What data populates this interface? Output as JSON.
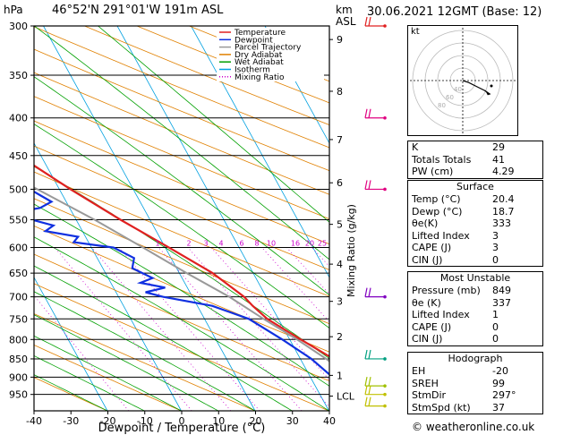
{
  "header": {
    "pressure_unit": "hPa",
    "location": "46°52'N  291°01'W  191m  ASL",
    "height_unit": "km",
    "height_unit2": "ASL",
    "valid_time": "30.06.2021  12GMT  (Base: 12)"
  },
  "chart_data": {
    "type": "skew-t log-p sounding",
    "xlabel": "Dewpoint / Temperature (°C)",
    "ylabel": "hPa",
    "mixing_ratio_label": "Mixing Ratio (g/kg)",
    "x_ticks": [
      -40,
      -30,
      -20,
      -10,
      0,
      10,
      20,
      30,
      40
    ],
    "pressure_levels": [
      300,
      350,
      400,
      450,
      500,
      550,
      600,
      650,
      700,
      750,
      800,
      850,
      900,
      950
    ],
    "height_ticks": [
      {
        "label": "9",
        "p": 313
      },
      {
        "label": "8",
        "p": 368
      },
      {
        "label": "7",
        "p": 428
      },
      {
        "label": "6",
        "p": 490
      },
      {
        "label": "5",
        "p": 558
      },
      {
        "label": "4",
        "p": 632
      },
      {
        "label": "3",
        "p": 710
      },
      {
        "label": "2",
        "p": 793
      },
      {
        "label": "1",
        "p": 895
      },
      {
        "label": "LCL",
        "p": 955
      }
    ],
    "mixing_ratio_values": [
      "1",
      "2",
      "3",
      "4",
      "6",
      "8",
      "10",
      "16",
      "20",
      "25"
    ],
    "legend": [
      {
        "name": "Temperature",
        "color": "#e02020"
      },
      {
        "name": "Dewpoint",
        "color": "#1030e0"
      },
      {
        "name": "Parcel Trajectory",
        "color": "#999999"
      },
      {
        "name": "Dry Adiabat",
        "color": "#e08000"
      },
      {
        "name": "Wet Adiabat",
        "color": "#00a000"
      },
      {
        "name": "Isotherm",
        "color": "#00a0e0"
      },
      {
        "name": "Mixing Ratio",
        "color": "#cc00cc"
      }
    ],
    "temperature": [
      [
        990,
        20.4
      ],
      [
        950,
        18.5
      ],
      [
        900,
        16.5
      ],
      [
        850,
        14.5
      ],
      [
        800,
        11.5
      ],
      [
        750,
        8.5
      ],
      [
        720,
        7.5
      ],
      [
        700,
        7.0
      ],
      [
        650,
        4.5
      ],
      [
        600,
        0.5
      ],
      [
        550,
        -4.0
      ],
      [
        500,
        -8.5
      ],
      [
        450,
        -13.0
      ],
      [
        400,
        -20.0
      ],
      [
        350,
        -28.0
      ],
      [
        320,
        -33.0
      ],
      [
        300,
        -36.0
      ]
    ],
    "dewpoint": [
      [
        990,
        18.7
      ],
      [
        950,
        16.0
      ],
      [
        900,
        13.0
      ],
      [
        850,
        11.5
      ],
      [
        800,
        9.0
      ],
      [
        750,
        6.0
      ],
      [
        720,
        2.0
      ],
      [
        700,
        -4.0
      ],
      [
        690,
        -6.0
      ],
      [
        680,
        -3.0
      ],
      [
        670,
        -6.0
      ],
      [
        660,
        -4.0
      ],
      [
        640,
        -6.0
      ],
      [
        620,
        -5.0
      ],
      [
        600,
        -7.0
      ],
      [
        590,
        -12.0
      ],
      [
        580,
        -11.0
      ],
      [
        570,
        -15.0
      ],
      [
        560,
        -13.5
      ],
      [
        550,
        -16.0
      ],
      [
        540,
        -19.0
      ],
      [
        530,
        -14.0
      ],
      [
        520,
        -12.0
      ],
      [
        510,
        -13.0
      ],
      [
        500,
        -14.0
      ],
      [
        470,
        -21.0
      ],
      [
        450,
        -24.0
      ],
      [
        430,
        -30.0
      ],
      [
        400,
        -35.0
      ],
      [
        370,
        -40.0
      ],
      [
        355,
        -44.0
      ],
      [
        345,
        -46.0
      ],
      [
        340,
        -51.0
      ],
      [
        335,
        -62.0
      ],
      [
        325,
        -75.0
      ],
      [
        320,
        -82.0
      ],
      [
        310,
        -92.0
      ],
      [
        300,
        -97.0
      ]
    ],
    "parcel": [
      [
        990,
        20.4
      ],
      [
        955,
        17.3
      ],
      [
        900,
        15.5
      ],
      [
        850,
        13.5
      ],
      [
        800,
        11.0
      ],
      [
        750,
        8.0
      ],
      [
        700,
        5.0
      ],
      [
        650,
        1.0
      ],
      [
        600,
        -3.0
      ],
      [
        550,
        -7.5
      ],
      [
        500,
        -13.0
      ],
      [
        450,
        -19.0
      ],
      [
        400,
        -26.0
      ],
      [
        350,
        -34.0
      ],
      [
        300,
        -44.0
      ]
    ],
    "wind_barbs": [
      {
        "p": 300,
        "color": "#e02020"
      },
      {
        "p": 400,
        "color": "#e00080"
      },
      {
        "p": 500,
        "color": "#e00080"
      },
      {
        "p": 700,
        "color": "#8000c0"
      },
      {
        "p": 850,
        "color": "#00a080"
      },
      {
        "p": 925,
        "color": "#a0c000"
      },
      {
        "p": 950,
        "color": "#c0c000"
      },
      {
        "p": 985,
        "color": "#c0c000"
      }
    ]
  },
  "hodograph": {
    "unit": "kt",
    "ring_labels": [
      "40",
      "60",
      "80"
    ],
    "trace": [
      [
        0,
        0
      ],
      [
        6,
        -2
      ],
      [
        14,
        -6
      ],
      [
        22,
        -10
      ],
      [
        28,
        -14
      ]
    ]
  },
  "indices": [
    {
      "label": "K",
      "value": "29"
    },
    {
      "label": "Totals Totals",
      "value": "41"
    },
    {
      "label": "PW (cm)",
      "value": "4.29"
    }
  ],
  "surface": {
    "title": "Surface",
    "rows": [
      {
        "label": "Temp (°C)",
        "value": "20.4"
      },
      {
        "label": "Dewp (°C)",
        "value": "18.7"
      },
      {
        "label": "θe(K)",
        "value": "333"
      },
      {
        "label": "Lifted Index",
        "value": "3"
      },
      {
        "label": "CAPE (J)",
        "value": "3"
      },
      {
        "label": "CIN (J)",
        "value": "0"
      }
    ]
  },
  "most_unstable": {
    "title": "Most Unstable",
    "rows": [
      {
        "label": "Pressure (mb)",
        "value": "849"
      },
      {
        "label": "θe (K)",
        "value": "337"
      },
      {
        "label": "Lifted Index",
        "value": "1"
      },
      {
        "label": "CAPE (J)",
        "value": "0"
      },
      {
        "label": "CIN (J)",
        "value": "0"
      }
    ]
  },
  "hodograph_params": {
    "title": "Hodograph",
    "rows": [
      {
        "label": "EH",
        "value": "-20"
      },
      {
        "label": "SREH",
        "value": "99"
      },
      {
        "label": "StmDir",
        "value": "297°"
      },
      {
        "label": "StmSpd (kt)",
        "value": "37"
      }
    ]
  },
  "credit": "© weatheronline.co.uk"
}
